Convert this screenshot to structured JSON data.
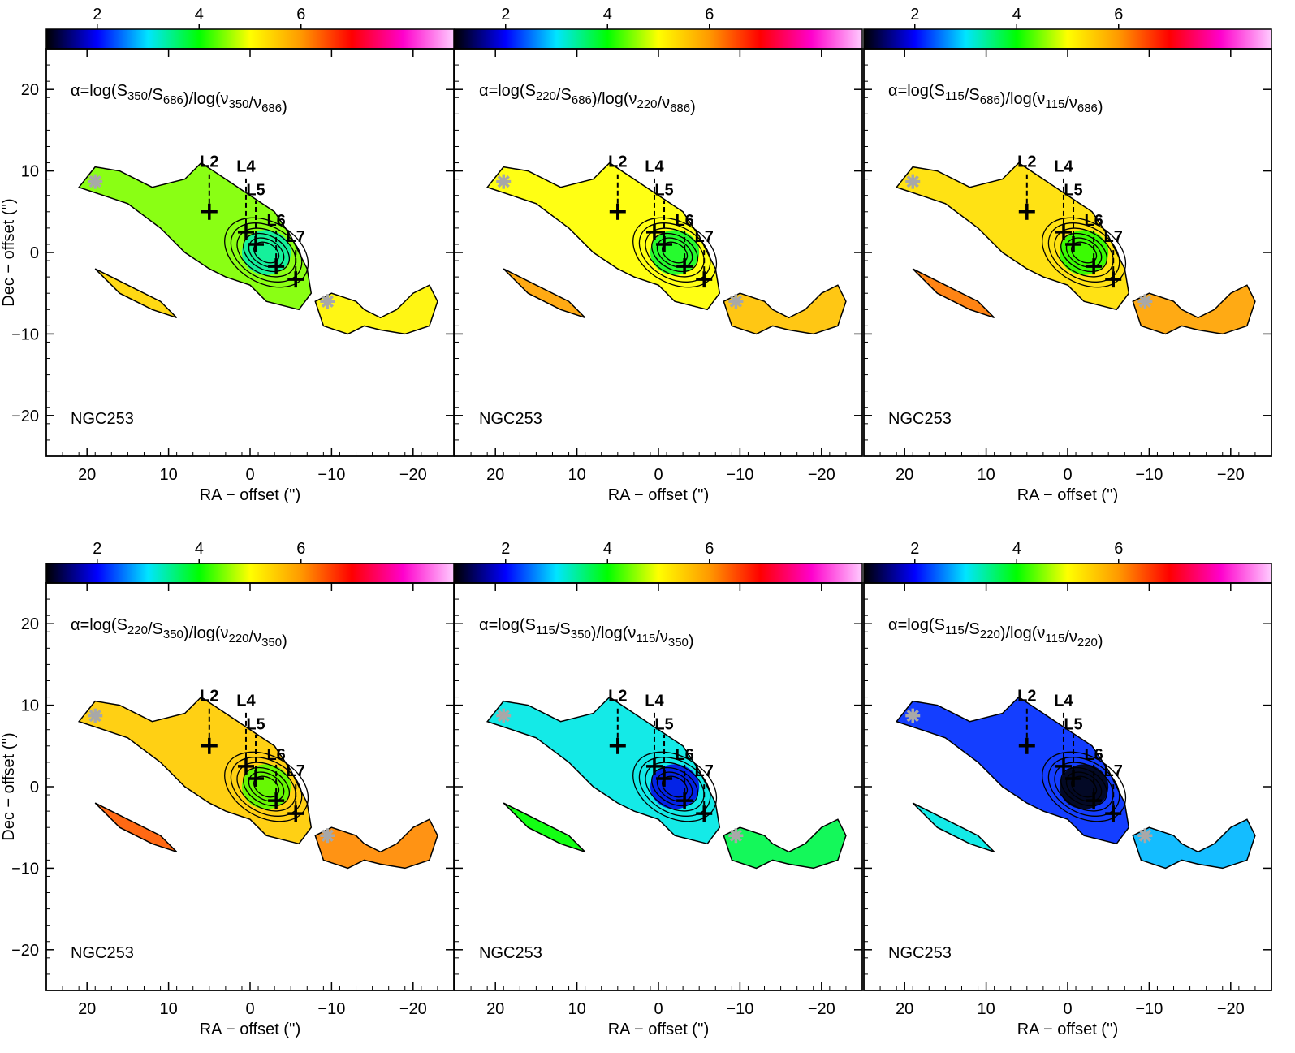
{
  "figure": {
    "ra_range": [
      25,
      -25
    ],
    "dec_range": [
      -25,
      25
    ],
    "colorbar": {
      "range": [
        1,
        9
      ],
      "ticks": [
        "2",
        "4",
        "6"
      ],
      "tick_values": [
        2,
        4,
        6
      ],
      "colormap": [
        "#000000",
        "#0000ff",
        "#00e5ff",
        "#00ff00",
        "#ffff00",
        "#ff9900",
        "#ff0000",
        "#ff00cc",
        "#ffccff"
      ]
    },
    "x_ticks": [
      20,
      10,
      0,
      -10,
      -20
    ],
    "x_tick_labels": [
      "20",
      "10",
      "0",
      "−10",
      "−20"
    ],
    "y_ticks": [
      20,
      10,
      0,
      -10,
      -20
    ],
    "y_tick_labels": [
      "20",
      "10",
      "0",
      "−10",
      "−20"
    ],
    "xlabel": "RA − offset ('')",
    "ylabel": "Dec − offset ('')",
    "source": "NGC253",
    "positions": [
      {
        "label": "L2",
        "ra": 5.0,
        "dec": 5.0
      },
      {
        "label": "L4",
        "ra": 0.5,
        "dec": 2.5
      },
      {
        "label": "L5",
        "ra": -0.7,
        "dec": 1.0
      },
      {
        "label": "L6",
        "ra": -3.2,
        "dec": -1.7
      },
      {
        "label": "L7",
        "ra": -5.6,
        "dec": -3.3
      }
    ],
    "stars": [
      {
        "ra": 19.0,
        "dec": 8.7
      },
      {
        "ra": -9.5,
        "dec": -6.0
      }
    ]
  },
  "chart_data": [
    {
      "type": "heatmap",
      "title_pre": "α=log(S",
      "num": "350",
      "den": "686",
      "mean_alpha": 4.5,
      "source": "NGC253"
    },
    {
      "type": "heatmap",
      "title_pre": "α=log(S",
      "num": "220",
      "den": "686",
      "mean_alpha": 5.0,
      "source": "NGC253"
    },
    {
      "type": "heatmap",
      "title_pre": "α=log(S",
      "num": "115",
      "den": "686",
      "mean_alpha": 5.3,
      "source": "NGC253"
    },
    {
      "type": "heatmap",
      "title_pre": "α=log(S",
      "num": "220",
      "den": "350",
      "mean_alpha": 5.5,
      "source": "NGC253"
    },
    {
      "type": "heatmap",
      "title_pre": "α=log(S",
      "num": "115",
      "den": "350",
      "mean_alpha": 3.1,
      "source": "NGC253"
    },
    {
      "type": "heatmap",
      "title_pre": "α=log(S",
      "num": "115",
      "den": "220",
      "mean_alpha": 2.2,
      "source": "NGC253"
    }
  ]
}
